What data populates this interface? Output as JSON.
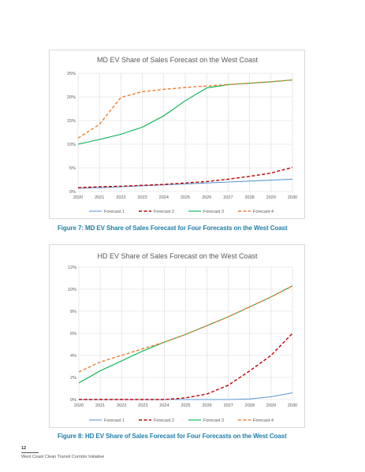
{
  "chart_data": [
    {
      "type": "line",
      "title": "MD EV Share of Sales Forecast on the West Coast",
      "xlabel": "",
      "ylabel": "",
      "x": [
        "2020",
        "2021",
        "2022",
        "2023",
        "2024",
        "2025",
        "2026",
        "2027",
        "2028",
        "2029",
        "2030"
      ],
      "y_ticks": [
        "0%",
        "5%",
        "10%",
        "15%",
        "20%",
        "25%"
      ],
      "ylim": [
        0,
        25
      ],
      "grid": true,
      "legend": "bottom",
      "series": [
        {
          "name": "Forecast 1",
          "color": "#5b9bd5",
          "dash": "solid",
          "values": [
            0.7,
            0.8,
            1.0,
            1.2,
            1.4,
            1.6,
            1.8,
            2.0,
            2.2,
            2.4,
            2.6
          ]
        },
        {
          "name": "Forecast 2",
          "color": "#c00000",
          "dash": "dashed",
          "values": [
            0.8,
            1.0,
            1.1,
            1.3,
            1.5,
            1.8,
            2.1,
            2.6,
            3.2,
            3.9,
            5.1
          ]
        },
        {
          "name": "Forecast 3",
          "color": "#00b050",
          "dash": "solid",
          "values": [
            10.0,
            11.0,
            12.1,
            13.6,
            16.0,
            19.2,
            21.9,
            22.6,
            22.9,
            23.2,
            23.6
          ]
        },
        {
          "name": "Forecast 4",
          "color": "#ed7d31",
          "dash": "dashed",
          "values": [
            11.3,
            14.2,
            19.9,
            21.1,
            21.6,
            22.0,
            22.3,
            22.6,
            22.9,
            23.2,
            23.6
          ]
        }
      ]
    },
    {
      "type": "line",
      "title": "HD EV Share of Sales Forecast on the West Coast",
      "xlabel": "",
      "ylabel": "",
      "x": [
        "2020",
        "2021",
        "2022",
        "2023",
        "2024",
        "2025",
        "2026",
        "2027",
        "2028",
        "2029",
        "2030"
      ],
      "y_ticks": [
        "0%",
        "2%",
        "4%",
        "6%",
        "8%",
        "10%",
        "12%"
      ],
      "ylim": [
        0,
        12
      ],
      "grid": true,
      "legend": "bottom",
      "series": [
        {
          "name": "Forecast 1",
          "color": "#5b9bd5",
          "dash": "solid",
          "values": [
            0.0,
            0.0,
            0.0,
            0.0,
            0.0,
            0.0,
            0.0,
            0.0,
            0.05,
            0.25,
            0.6
          ]
        },
        {
          "name": "Forecast 2",
          "color": "#c00000",
          "dash": "dashed",
          "values": [
            0.0,
            0.0,
            0.0,
            0.0,
            0.0,
            0.15,
            0.5,
            1.3,
            2.6,
            4.0,
            6.0
          ]
        },
        {
          "name": "Forecast 3",
          "color": "#00b050",
          "dash": "solid",
          "values": [
            1.5,
            2.6,
            3.5,
            4.4,
            5.2,
            5.9,
            6.7,
            7.5,
            8.4,
            9.3,
            10.3
          ]
        },
        {
          "name": "Forecast 4",
          "color": "#ed7d31",
          "dash": "dashed",
          "values": [
            2.5,
            3.4,
            4.0,
            4.6,
            5.2,
            5.9,
            6.7,
            7.5,
            8.4,
            9.3,
            10.3
          ]
        }
      ]
    }
  ],
  "captions": {
    "figure7": "Figure 7: MD EV Share of Sales Forecast for Four Forecasts on the West Coast",
    "figure8": "Figure 8: HD EV Share of Sales Forecast for Four Forecasts on the West Coast"
  },
  "footer": {
    "page_number": "12",
    "document_title": "West Coast Clean Transit Corridor Initiative"
  }
}
